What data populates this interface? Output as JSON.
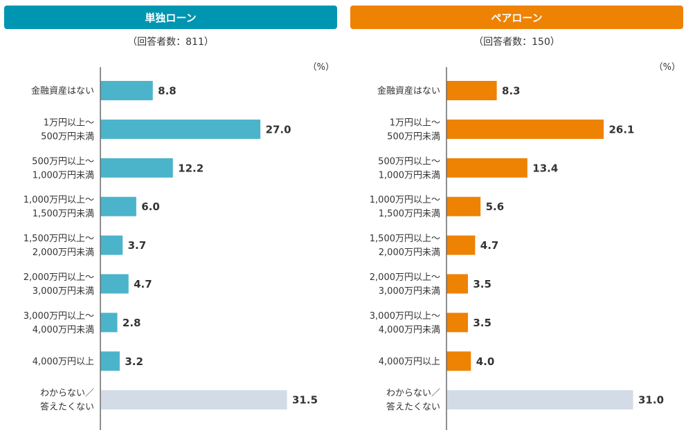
{
  "chart_data": [
    {
      "type": "bar",
      "title": "単独ローン",
      "subtitle": "（回答者数：811）",
      "unit": "（%）",
      "categories": [
        "金融資産はない",
        "1万円以上～\n500万円未満",
        "500万円以上～\n1,000万円未満",
        "1,000万円以上～\n1,500万円未満",
        "1,500万円以上～\n2,000万円未満",
        "2,000万円以上～\n3,000万円未満",
        "3,000万円以上～\n4,000万円未満",
        "4,000万円以上",
        "わからない／\n答えたくない"
      ],
      "values": [
        8.8,
        27.0,
        12.2,
        6.0,
        3.7,
        4.7,
        2.8,
        3.2,
        31.5
      ],
      "value_labels": [
        "8.8",
        "27.0",
        "12.2",
        "6.0",
        "3.7",
        "4.7",
        "2.8",
        "3.2",
        "31.5"
      ],
      "xlim": [
        0,
        31.5
      ],
      "header_color": "#0095B0",
      "bar_color": "#4BB4CB",
      "other_bar_color": "#D3DCE6"
    },
    {
      "type": "bar",
      "title": "ペアローン",
      "subtitle": "（回答者数：150）",
      "unit": "（%）",
      "categories": [
        "金融資産はない",
        "1万円以上～\n500万円未満",
        "500万円以上～\n1,000万円未満",
        "1,000万円以上～\n1,500万円未満",
        "1,500万円以上～\n2,000万円未満",
        "2,000万円以上～\n3,000万円未満",
        "3,000万円以上～\n4,000万円未満",
        "4,000万円以上",
        "わからない／\n答えたくない"
      ],
      "values": [
        8.3,
        26.1,
        13.4,
        5.6,
        4.7,
        3.5,
        3.5,
        4.0,
        31.0
      ],
      "value_labels": [
        "8.3",
        "26.1",
        "13.4",
        "5.6",
        "4.7",
        "3.5",
        "3.5",
        "4.0",
        "31.0"
      ],
      "xlim": [
        0,
        31.0
      ],
      "header_color": "#EE8203",
      "bar_color": "#EE8203",
      "other_bar_color": "#D3DCE6"
    }
  ]
}
